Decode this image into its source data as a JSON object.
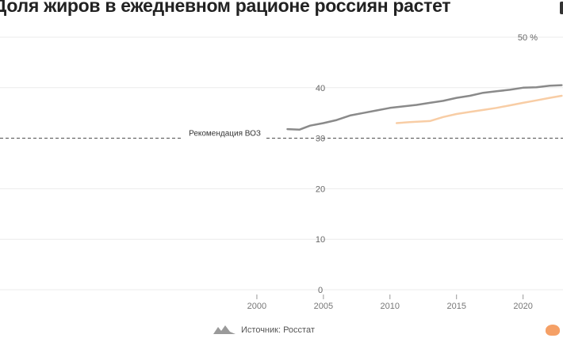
{
  "title": "Доля жиров в ежедневном рационе россиян растет",
  "source": "Источник: Росстат",
  "chart_data": {
    "type": "line",
    "x_range": [
      1995,
      2023
    ],
    "y_range": [
      0,
      50
    ],
    "y_ticks": [
      0,
      10,
      20,
      30,
      40
    ],
    "y_tick_labels": [
      "0",
      "10",
      "20",
      "30",
      "40"
    ],
    "y_top_label": "50 %",
    "x_ticks": [
      2000,
      2005,
      2010,
      2015,
      2020
    ],
    "x_tick_labels": [
      "2000",
      "2005",
      "2010",
      "2015",
      "2020"
    ],
    "reference": {
      "label": "Рекомендация ВОЗ",
      "value": 30
    },
    "series": [
      {
        "color": "#8a8a8a",
        "segments": [
          [
            [
              2002.3,
              31.8
            ],
            [
              2003.2,
              31.7
            ],
            [
              2004.0,
              32.5
            ],
            [
              2005.0,
              33.0
            ],
            [
              2006.0,
              33.6
            ],
            [
              2007.0,
              34.5
            ],
            [
              2008.0,
              35.0
            ],
            [
              2009.0,
              35.5
            ],
            [
              2010.0,
              36.0
            ],
            [
              2011.0,
              36.3
            ],
            [
              2012.0,
              36.6
            ],
            [
              2013.0,
              37.0
            ],
            [
              2014.0,
              37.4
            ],
            [
              2015.0,
              38.0
            ],
            [
              2016.0,
              38.4
            ],
            [
              2017.0,
              39.0
            ],
            [
              2018.0,
              39.3
            ],
            [
              2019.0,
              39.6
            ],
            [
              2020.0,
              40.0
            ],
            [
              2021.0,
              40.1
            ],
            [
              2022.0,
              40.4
            ],
            [
              2022.9,
              40.5
            ]
          ]
        ]
      },
      {
        "color": "#f8cda5",
        "segments": [
          [
            [
              2010.5,
              33.0
            ],
            [
              2011.5,
              33.2
            ],
            [
              2013.0,
              33.4
            ],
            [
              2014.0,
              34.2
            ],
            [
              2015.0,
              34.8
            ],
            [
              2016.0,
              35.2
            ],
            [
              2017.0,
              35.6
            ],
            [
              2018.0,
              36.0
            ],
            [
              2019.0,
              36.5
            ],
            [
              2020.0,
              37.0
            ],
            [
              2021.0,
              37.5
            ],
            [
              2022.0,
              38.0
            ],
            [
              2022.9,
              38.4
            ]
          ]
        ]
      }
    ]
  }
}
